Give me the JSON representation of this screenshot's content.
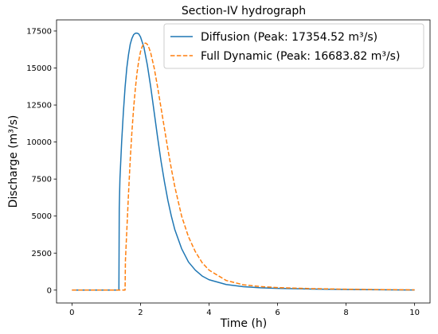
{
  "chart_data": {
    "type": "line",
    "title": "Section-IV hydrograph",
    "xlabel": "Time (h)",
    "ylabel": "Discharge (m³/s)",
    "xlim": [
      -0.45,
      10.45
    ],
    "ylim": [
      -870,
      18250
    ],
    "xticks": [
      0,
      2,
      4,
      6,
      8,
      10
    ],
    "yticks": [
      0,
      2500,
      5000,
      7500,
      10000,
      12500,
      15000,
      17500
    ],
    "grid": false,
    "legend_position": "top-right",
    "series": [
      {
        "name": "Diffusion  (Peak: 17354.52 m³/s)",
        "color": "#1f77b4",
        "style": "solid",
        "x": [
          0,
          1.37,
          1.38,
          1.4,
          1.45,
          1.5,
          1.55,
          1.6,
          1.65,
          1.7,
          1.75,
          1.8,
          1.85,
          1.9,
          1.95,
          2.0,
          2.1,
          2.2,
          2.3,
          2.4,
          2.5,
          2.6,
          2.7,
          2.8,
          2.9,
          3.0,
          3.2,
          3.4,
          3.6,
          3.8,
          4.0,
          4.5,
          5.0,
          5.5,
          6.0,
          7.0,
          8.0,
          9.0,
          10.0
        ],
        "y": [
          0,
          0,
          5500,
          7500,
          10000,
          12000,
          13700,
          15000,
          15900,
          16600,
          17000,
          17250,
          17350,
          17354.52,
          17300,
          17100,
          16400,
          15200,
          13700,
          12000,
          10300,
          8700,
          7300,
          6050,
          5000,
          4100,
          2800,
          1900,
          1350,
          950,
          700,
          380,
          230,
          160,
          120,
          70,
          40,
          20,
          10
        ]
      },
      {
        "name": "Full Dynamic  (Peak: 16683.82 m³/s)",
        "color": "#ff7f0e",
        "style": "dashed",
        "x": [
          0,
          1.55,
          1.56,
          1.6,
          1.65,
          1.7,
          1.75,
          1.8,
          1.85,
          1.9,
          1.95,
          2.0,
          2.05,
          2.1,
          2.15,
          2.2,
          2.25,
          2.3,
          2.4,
          2.5,
          2.6,
          2.7,
          2.8,
          2.9,
          3.0,
          3.2,
          3.4,
          3.6,
          3.8,
          4.0,
          4.5,
          5.0,
          5.5,
          6.0,
          7.0,
          8.0,
          9.0,
          10.0
        ],
        "y": [
          0,
          0,
          2000,
          4000,
          6500,
          8800,
          10700,
          12300,
          13600,
          14700,
          15500,
          16100,
          16450,
          16650,
          16683.82,
          16600,
          16350,
          16000,
          15000,
          13700,
          12300,
          10900,
          9500,
          8200,
          7000,
          5000,
          3600,
          2600,
          1850,
          1350,
          650,
          360,
          240,
          170,
          100,
          60,
          35,
          15
        ]
      }
    ]
  }
}
